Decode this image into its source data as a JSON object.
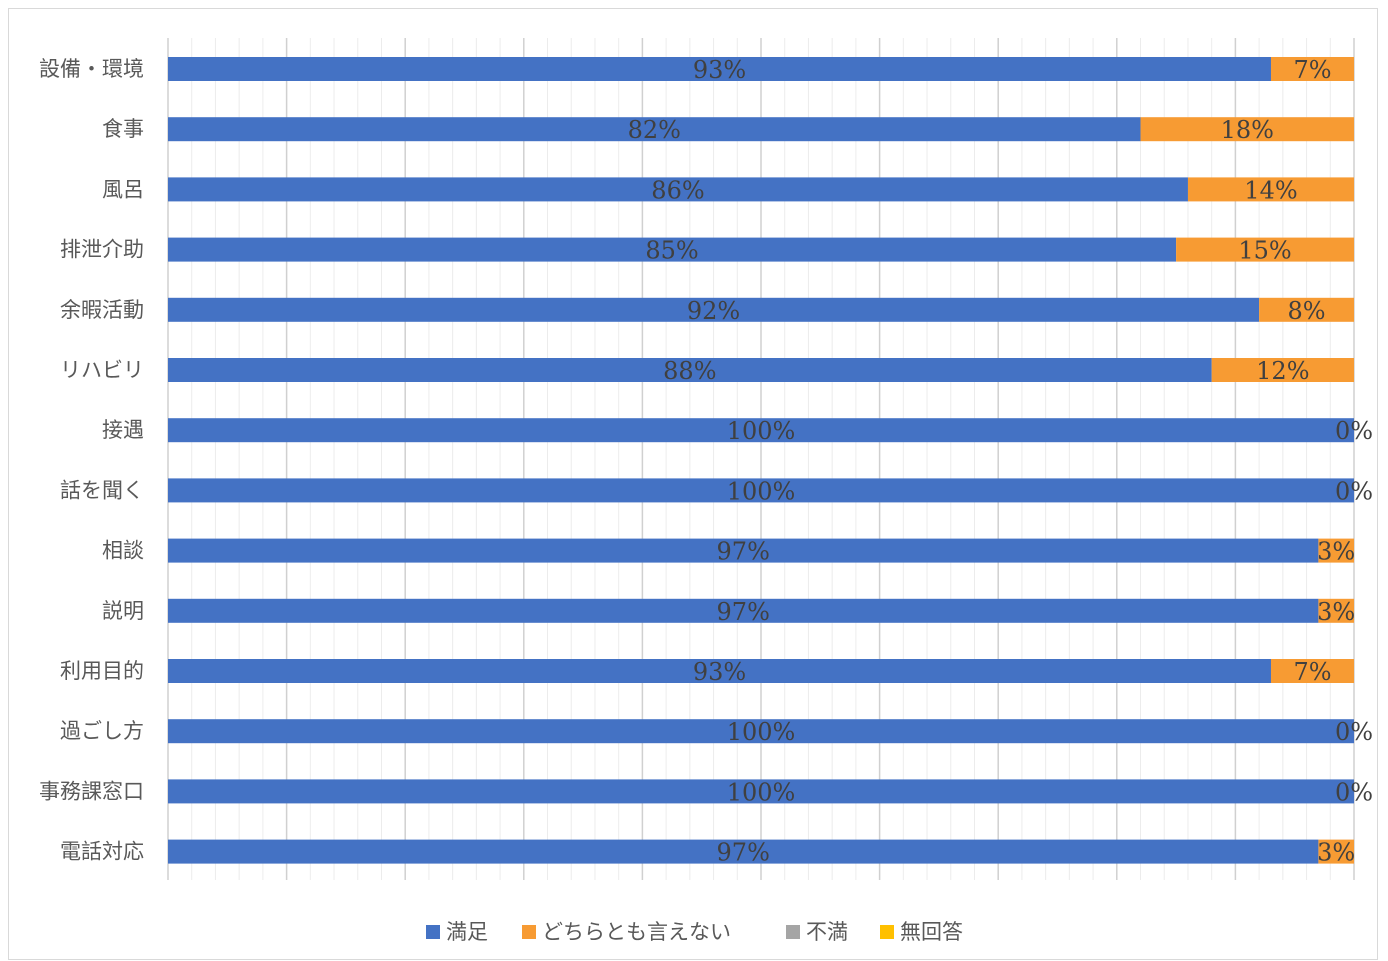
{
  "chart_data": {
    "type": "bar",
    "orientation": "horizontal",
    "stacked": true,
    "percent": true,
    "categories": [
      "設備・環境",
      "食事",
      "風呂",
      "排泄介助",
      "余暇活動",
      "リハビリ",
      "接遇",
      "話を聞く",
      "相談",
      "説明",
      "利用目的",
      "過ごし方",
      "事務課窓口",
      "電話対応"
    ],
    "series": [
      {
        "name": "満足",
        "color": "#4472C4",
        "values": [
          93,
          82,
          86,
          85,
          92,
          88,
          100,
          100,
          97,
          97,
          93,
          100,
          100,
          97
        ]
      },
      {
        "name": "どちらとも言えない",
        "color": "#F79B33",
        "values": [
          7,
          18,
          14,
          15,
          8,
          12,
          0,
          0,
          3,
          3,
          7,
          0,
          0,
          3
        ]
      },
      {
        "name": "不満",
        "color": "#A5A5A5",
        "values": [
          0,
          0,
          0,
          0,
          0,
          0,
          0,
          0,
          0,
          0,
          0,
          0,
          0,
          0
        ]
      },
      {
        "name": "無回答",
        "color": "#FFC000",
        "values": [
          0,
          0,
          0,
          0,
          0,
          0,
          0,
          0,
          0,
          0,
          0,
          0,
          0,
          0
        ]
      }
    ],
    "data_labels": {
      "満足": [
        "93%",
        "82%",
        "86%",
        "85%",
        "92%",
        "88%",
        "100%",
        "100%",
        "97%",
        "97%",
        "93%",
        "100%",
        "100%",
        "97%"
      ],
      "どちらとも言えない": [
        "7%",
        "18%",
        "14%",
        "15%",
        "8%",
        "12%",
        "0%",
        "0%",
        "3%",
        "3%",
        "7%",
        "0%",
        "0%",
        "3%"
      ]
    },
    "xlim": [
      0,
      100
    ],
    "grid": true,
    "legend": "bottom"
  }
}
